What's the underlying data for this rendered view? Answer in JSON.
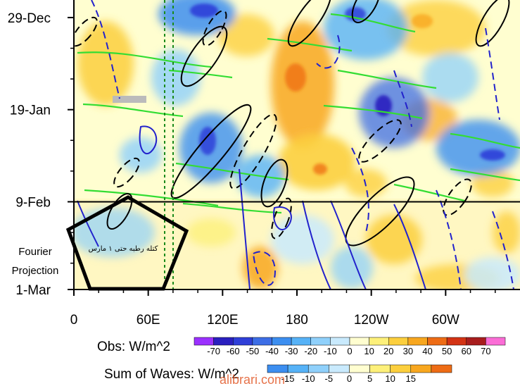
{
  "chart_data": {
    "type": "heatmap",
    "xaxis": {
      "ticks": [
        {
          "lon": 0,
          "label": "0"
        },
        {
          "lon": 60,
          "label": "60E"
        },
        {
          "lon": 120,
          "label": "120E"
        },
        {
          "lon": 180,
          "label": "180"
        },
        {
          "lon": 240,
          "label": "120W"
        },
        {
          "lon": 300,
          "label": "60W"
        }
      ],
      "range": [
        0,
        360
      ]
    },
    "yaxis": {
      "ticks": [
        {
          "day": 0,
          "label": "29-Dec"
        },
        {
          "day": 21,
          "label": "19-Jan"
        },
        {
          "day": 42,
          "label": "9-Feb"
        },
        {
          "day": 62,
          "label": "1-Mar"
        }
      ],
      "range_days": [
        -4,
        62
      ],
      "reference_line_day": 42
    },
    "side_label": [
      "Fourier",
      "Projection"
    ],
    "annotation_text": "کتله رطبه حتی ۱ مارس",
    "colorbars": [
      {
        "title": "Obs: W/m^2",
        "labels": [
          "-70",
          "-60",
          "-50",
          "-40",
          "-30",
          "-20",
          "-10",
          "0",
          "10",
          "20",
          "30",
          "40",
          "50",
          "60",
          "70"
        ],
        "colors": [
          "#9b30ff",
          "#2a1fbf",
          "#2f3fd8",
          "#3d6ee6",
          "#3c8ef0",
          "#56b2f7",
          "#8fd0fb",
          "#c9eafd",
          "#fffed0",
          "#fdf07a",
          "#fccf3d",
          "#f8a71f",
          "#ee6c15",
          "#d33314",
          "#a81d1d",
          "#fb6dd6"
        ]
      },
      {
        "title": "Sum of Waves: W/m^2",
        "labels": [
          "-15",
          "-10",
          "-5",
          "0",
          "5",
          "10",
          "15"
        ],
        "colors": [
          "#3c8ef0",
          "#56b2f7",
          "#8fd0fb",
          "#c9eafd",
          "#fffed0",
          "#fdf07a",
          "#fccf3d",
          "#f8a71f",
          "#ee6c15"
        ]
      }
    ],
    "watermark": "alibrari.com",
    "colors": {
      "axis": "#000000",
      "pos_contour": "#000000",
      "neg_contour": "#2222cc",
      "green_contour": "#33dd33",
      "pentagon": "#000000",
      "vline": "#1a8a1a"
    }
  }
}
